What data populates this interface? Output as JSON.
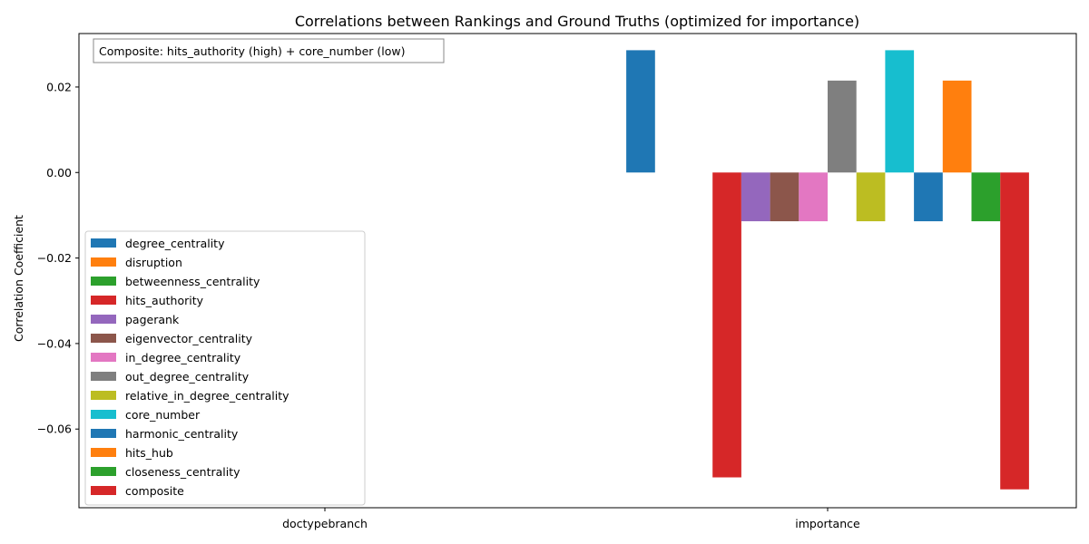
{
  "chart_data": {
    "type": "bar",
    "title": "Correlations between Rankings and Ground Truths (optimized for importance)",
    "xlabel": "",
    "ylabel": "Correlation Coefficient",
    "categories": [
      "doctypebranch",
      "importance"
    ],
    "ylim": [
      -0.0784,
      0.0325
    ],
    "yticks": [
      0.02,
      0.0,
      -0.02,
      -0.04,
      -0.06
    ],
    "ytick_labels": [
      "0.02",
      "0.00",
      "−0.02",
      "−0.04",
      "−0.06"
    ],
    "grid": false,
    "legend_position": "lower-left",
    "annotation": "Composite: hits_authority (high) + core_number (low)",
    "series": [
      {
        "name": "degree_centrality",
        "color": "#1f77b4",
        "values": [
          null,
          0.0286
        ]
      },
      {
        "name": "disruption",
        "color": "#ff7f0e",
        "values": [
          null,
          0.0
        ]
      },
      {
        "name": "betweenness_centrality",
        "color": "#2ca02c",
        "values": [
          null,
          0.0
        ]
      },
      {
        "name": "hits_authority",
        "color": "#d62728",
        "values": [
          null,
          -0.0713
        ]
      },
      {
        "name": "pagerank",
        "color": "#9467bd",
        "values": [
          null,
          -0.0114
        ]
      },
      {
        "name": "eigenvector_centrality",
        "color": "#8c564b",
        "values": [
          null,
          -0.0114
        ]
      },
      {
        "name": "in_degree_centrality",
        "color": "#e377c2",
        "values": [
          null,
          -0.0114
        ]
      },
      {
        "name": "out_degree_centrality",
        "color": "#7f7f7f",
        "values": [
          null,
          0.0215
        ]
      },
      {
        "name": "relative_in_degree_centrality",
        "color": "#bcbd22",
        "values": [
          null,
          -0.0114
        ]
      },
      {
        "name": "core_number",
        "color": "#17becf",
        "values": [
          null,
          0.0286
        ]
      },
      {
        "name": "harmonic_centrality",
        "color": "#1f77b4",
        "values": [
          null,
          -0.0114
        ]
      },
      {
        "name": "hits_hub",
        "color": "#ff7f0e",
        "values": [
          null,
          0.0215
        ]
      },
      {
        "name": "closeness_centrality",
        "color": "#2ca02c",
        "values": [
          null,
          -0.0114
        ]
      },
      {
        "name": "composite",
        "color": "#d62728",
        "values": [
          null,
          -0.0741
        ]
      }
    ]
  }
}
